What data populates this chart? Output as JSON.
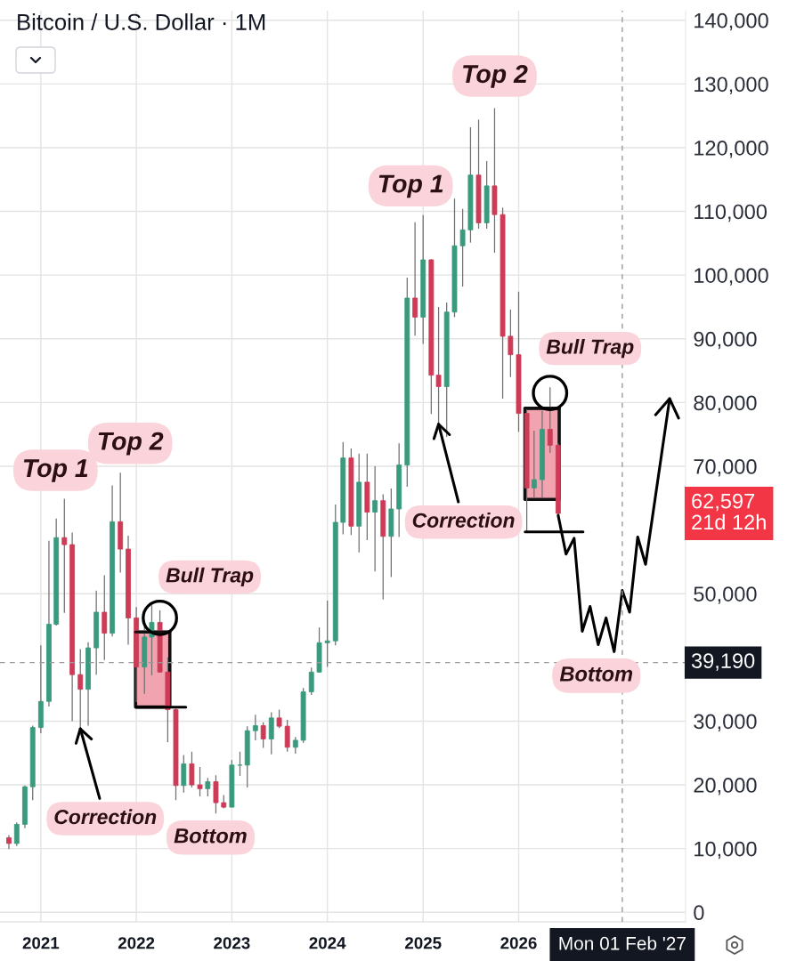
{
  "chart_data": {
    "type": "candlestick",
    "title": "Bitcoin / U.S. Dollar · 1M",
    "series": [
      {
        "type": "line",
        "x": [
          "2021-12-29",
          "2022-05-09"
        ],
        "values": [
          44000,
          44000
        ],
        "lower": [
          32200,
          32200
        ],
        "upper": [
          44000,
          44000
        ],
        "color": "#111111"
      },
      {
        "type": "line",
        "x": [
          "2026-01-25",
          "2026-06-05"
        ],
        "values": [
          79100,
          79100
        ],
        "lower": [
          64800,
          64800
        ],
        "upper": [
          79100,
          79100
        ],
        "color": "#111111"
      },
      {
        "x": [
          "2020-09",
          "2020-10",
          "2020-11",
          "2020-12",
          "2021-01",
          "2021-02",
          "2021-03",
          "2021-04",
          "2021-05",
          "2021-06",
          "2021-07",
          "2021-08",
          "2021-09",
          "2021-10",
          "2021-11",
          "2021-12",
          "2022-01",
          "2022-02",
          "2022-03",
          "2022-04",
          "2022-05",
          "2022-06",
          "2022-07",
          "2022-08",
          "2022-09",
          "2022-10",
          "2022-11",
          "2022-12",
          "2023-01",
          "2023-02",
          "2023-03",
          "2023-04",
          "2023-05",
          "2023-06",
          "2023-07",
          "2023-08",
          "2023-09",
          "2023-10",
          "2023-11",
          "2023-12",
          "2024-01",
          "2024-02",
          "2024-03",
          "2024-04",
          "2024-05",
          "2024-06",
          "2024-07",
          "2024-08",
          "2024-09",
          "2024-10",
          "2024-11",
          "2024-12",
          "2025-01",
          "2025-02",
          "2025-03",
          "2025-04",
          "2025-05",
          "2025-06",
          "2025-07",
          "2025-08",
          "2025-09",
          "2025-10",
          "2025-11",
          "2025-12",
          "2026-01",
          "2026-02",
          "2026-03",
          "2026-04",
          "2026-05",
          "2026-06"
        ],
        "ohlc": [
          [
            11700,
            12100,
            9900,
            10800
          ],
          [
            10800,
            14100,
            10400,
            13800
          ],
          [
            13800,
            19900,
            13200,
            19700
          ],
          [
            19700,
            29300,
            17600,
            29000
          ],
          [
            29000,
            41900,
            28100,
            33100
          ],
          [
            33100,
            58300,
            32300,
            45200
          ],
          [
            45200,
            61800,
            45000,
            58800
          ],
          [
            58800,
            64900,
            47000,
            57700
          ],
          [
            57700,
            59600,
            30000,
            37300
          ],
          [
            37300,
            41300,
            28800,
            35000
          ],
          [
            35000,
            42400,
            29300,
            41500
          ],
          [
            41500,
            50500,
            37300,
            47100
          ],
          [
            47100,
            52900,
            39600,
            43800
          ],
          [
            43800,
            67000,
            43300,
            61300
          ],
          [
            61300,
            69000,
            53300,
            57000
          ],
          [
            57000,
            59100,
            42000,
            46200
          ],
          [
            46200,
            47900,
            33000,
            38500
          ],
          [
            38500,
            45800,
            34300,
            43200
          ],
          [
            43200,
            48200,
            37200,
            45500
          ],
          [
            45500,
            47400,
            37600,
            37700
          ],
          [
            37700,
            40000,
            26700,
            31800
          ],
          [
            31800,
            32000,
            17600,
            19900
          ],
          [
            19900,
            24700,
            18800,
            23300
          ],
          [
            23300,
            25200,
            19600,
            20000
          ],
          [
            20000,
            22800,
            18200,
            19400
          ],
          [
            19400,
            21100,
            18200,
            20500
          ],
          [
            20500,
            21500,
            15500,
            17200
          ],
          [
            17200,
            18400,
            16300,
            16500
          ],
          [
            16500,
            23900,
            16500,
            23100
          ],
          [
            23100,
            25200,
            21400,
            23100
          ],
          [
            23100,
            29200,
            19600,
            28500
          ],
          [
            28500,
            31000,
            27000,
            29300
          ],
          [
            29300,
            29800,
            25800,
            27200
          ],
          [
            27200,
            31400,
            24800,
            30500
          ],
          [
            30500,
            31800,
            28900,
            29200
          ],
          [
            29200,
            30200,
            25200,
            25900
          ],
          [
            25900,
            27500,
            24900,
            27000
          ],
          [
            27000,
            35200,
            26600,
            34600
          ],
          [
            34600,
            38400,
            34100,
            37700
          ],
          [
            37700,
            44700,
            37600,
            42300
          ],
          [
            42300,
            48900,
            38500,
            42600
          ],
          [
            42600,
            64000,
            41900,
            61200
          ],
          [
            61200,
            73800,
            59300,
            71300
          ],
          [
            71300,
            72800,
            59200,
            60600
          ],
          [
            60600,
            72000,
            56500,
            67500
          ],
          [
            67500,
            72000,
            58400,
            62800
          ],
          [
            62800,
            70000,
            53500,
            64600
          ],
          [
            64600,
            65600,
            49100,
            59000
          ],
          [
            59000,
            66500,
            52600,
            63300
          ],
          [
            63300,
            73600,
            58900,
            70200
          ],
          [
            70200,
            99600,
            66800,
            96400
          ],
          [
            96400,
            108300,
            90500,
            93400
          ],
          [
            93400,
            109400,
            89200,
            102400
          ],
          [
            102400,
            102500,
            78200,
            84300
          ],
          [
            84300,
            95000,
            76600,
            82500
          ],
          [
            82500,
            95700,
            74600,
            94200
          ],
          [
            94200,
            112000,
            93400,
            104600
          ],
          [
            104600,
            110400,
            98200,
            107100
          ],
          [
            107100,
            123200,
            105100,
            115700
          ],
          [
            115700,
            124400,
            107300,
            108200
          ],
          [
            108200,
            117900,
            107300,
            114000
          ],
          [
            114000,
            126200,
            103500,
            109500
          ],
          [
            109500,
            110600,
            80600,
            90400
          ],
          [
            90400,
            94600,
            84000,
            87500
          ],
          [
            87500,
            97400,
            75400,
            78300
          ],
          [
            78300,
            79100,
            59800,
            66600
          ],
          [
            66600,
            75600,
            65000,
            67900
          ],
          [
            67900,
            78700,
            65100,
            75800
          ],
          [
            75800,
            82400,
            72100,
            73300
          ],
          [
            73300,
            73600,
            62300,
            62597
          ]
        ],
        "colors": [
          "#cd3b57",
          "#3a9a7e",
          "#3a9a7e",
          "#3a9a7e",
          "#3a9a7e",
          "#3a9a7e",
          "#3a9a7e",
          "#cd3b57",
          "#cd3b57",
          "#cd3b57",
          "#3a9a7e",
          "#3a9a7e",
          "#cd3b57",
          "#3a9a7e",
          "#cd3b57",
          "#cd3b57",
          "#cd3b57",
          "#3a9a7e",
          "#3a9a7e",
          "#cd3b57",
          "#cd3b57",
          "#cd3b57",
          "#3a9a7e",
          "#cd3b57",
          "#cd3b57",
          "#3a9a7e",
          "#cd3b57",
          "#cd3b57",
          "#3a9a7e",
          "#3a9a7e",
          "#3a9a7e",
          "#3a9a7e",
          "#cd3b57",
          "#3a9a7e",
          "#cd3b57",
          "#cd3b57",
          "#3a9a7e",
          "#3a9a7e",
          "#3a9a7e",
          "#3a9a7e",
          "#3a9a7e",
          "#3a9a7e",
          "#3a9a7e",
          "#cd3b57",
          "#3a9a7e",
          "#cd3b57",
          "#3a9a7e",
          "#cd3b57",
          "#3a9a7e",
          "#3a9a7e",
          "#3a9a7e",
          "#cd3b57",
          "#3a9a7e",
          "#cd3b57",
          "#cd3b57",
          "#3a9a7e",
          "#3a9a7e",
          "#3a9a7e",
          "#3a9a7e",
          "#cd3b57",
          "#3a9a7e",
          "#cd3b57",
          "#cd3b57",
          "#cd3b57",
          "#cd3b57",
          "#cd3b57",
          "#3a9a7e",
          "#3a9a7e",
          "#cd3b57",
          "#cd3b57"
        ]
      },
      {
        "type": "line",
        "x": [
          "2022-01-01",
          "2022-07-09"
        ],
        "values": [
          32200,
          32200
        ],
        "color": "#000000"
      },
      {
        "type": "line",
        "x": [
          "2026-01-26",
          "2026-09-04"
        ],
        "values": [
          59700,
          59700
        ],
        "color": "#000000"
      },
      {
        "type": "line",
        "x": [
          "2026-06",
          "2026-07",
          "2026-08",
          "2026-09",
          "2026-10",
          "2026-11",
          "2026-12",
          "2027-01",
          "2027-02",
          "2027-03",
          "2027-04",
          "2027-05",
          "2027-08"
        ],
        "values": [
          62300,
          56200,
          58700,
          44100,
          48000,
          42000,
          46200,
          40900,
          50500,
          47100,
          58900,
          54600,
          80600
        ],
        "color": "#000000"
      }
    ],
    "xlim": [
      "2020-07-29",
      "2027-10-01"
    ],
    "xticks": [
      {
        "value": "2021-01",
        "label": "2021"
      },
      {
        "value": "2022-01",
        "label": "2022"
      },
      {
        "value": "2023-01",
        "label": "2023"
      },
      {
        "value": "2024-01",
        "label": "2024"
      },
      {
        "value": "2025-01",
        "label": "2025"
      },
      {
        "value": "2026-01",
        "label": "2026"
      }
    ],
    "ylim": [
      -1500,
      141500
    ],
    "yticks": [
      0,
      {
        "value": 10000,
        "label": "10,000"
      },
      {
        "value": 20000,
        "label": "20,000"
      },
      {
        "value": 30000,
        "label": "30,000"
      },
      {
        "value": 50000,
        "label": "50,000"
      },
      {
        "value": 70000,
        "label": "70,000"
      },
      {
        "value": 80000,
        "label": "80,000"
      },
      {
        "value": 90000,
        "label": "90,000"
      },
      {
        "value": 100000,
        "label": "100,000"
      },
      {
        "value": 110000,
        "label": "110,000"
      },
      {
        "value": 120000,
        "label": "120,000"
      },
      {
        "value": 130000,
        "label": "130,000"
      },
      {
        "value": 140000,
        "label": "140,000"
      }
    ],
    "grid": true,
    "ref_lines": [
      {
        "axis": "x",
        "value": "2027-02",
        "label": "Mon 01 Feb '27",
        "line_style": "dashed",
        "color": "#9a9a9a"
      },
      {
        "axis": "y",
        "value": 39190,
        "label": "39,190",
        "line_style": "dashed",
        "color": "#9a9a9a"
      }
    ],
    "annotations": [
      {
        "text": "Top 1",
        "x": "2021-04",
        "y": 64900
      },
      {
        "text": "Top 2",
        "x": "2021-11",
        "y": 69000
      },
      {
        "text": "Bull Trap",
        "x": "2022-04",
        "y": 46200
      },
      {
        "text": "Correction",
        "x": "2021-06",
        "y": 28800
      },
      {
        "text": "Bottom",
        "x": "2022-11",
        "y": 15500
      },
      {
        "text": "Top 1",
        "x": "2025-01",
        "y": 109400
      },
      {
        "text": "Top 2",
        "x": "2025-10",
        "y": 126200
      },
      {
        "text": "Correction",
        "x": "2025-03",
        "y": 76600
      },
      {
        "text": "Bull Trap",
        "x": "2026-05",
        "y": 81500
      },
      {
        "text": "Bottom",
        "x": "2027-01",
        "y": 40900
      },
      "62,597\n21d 12h"
    ]
  }
}
